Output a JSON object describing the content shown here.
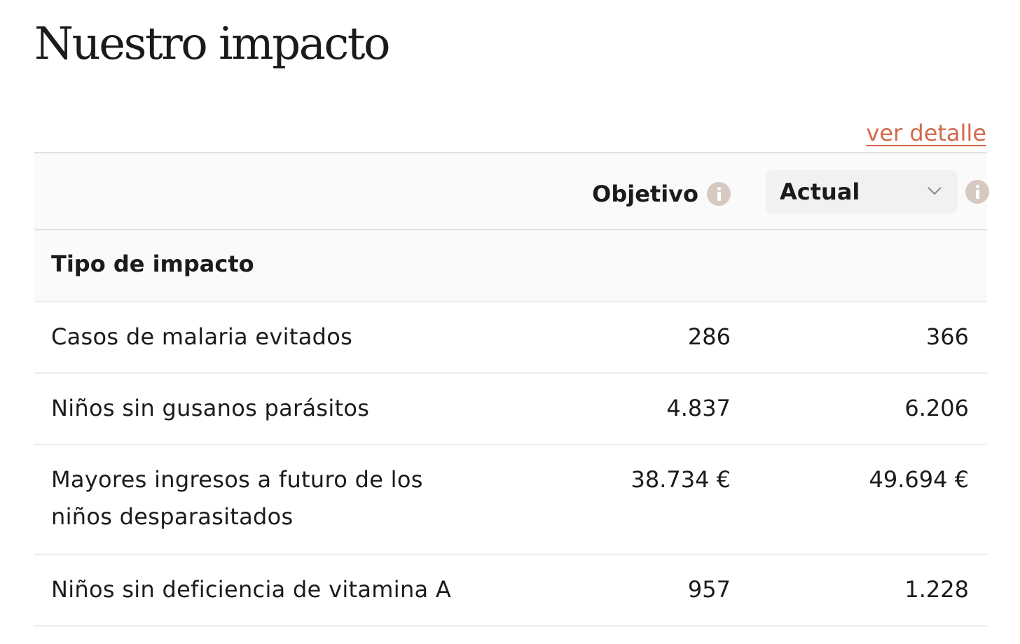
{
  "page": {
    "title": "Nuestro impacto",
    "detail_link": "ver detalle"
  },
  "table": {
    "columns": {
      "target_label": "Objetivo",
      "actual_select": {
        "selected": "Actual"
      }
    },
    "section_label": "Tipo de impacto",
    "rows": [
      {
        "label": "Casos de malaria evitados",
        "target": "286",
        "actual": "366"
      },
      {
        "label": "Niños sin gusanos parásitos",
        "target": "4.837",
        "actual": "6.206"
      },
      {
        "label": "Mayores ingresos a futuro de los niños desparasitados",
        "target": "38.734 €",
        "actual": "49.694 €"
      },
      {
        "label": "Niños sin deficiencia de vitamina A",
        "target": "957",
        "actual": "1.228"
      }
    ]
  },
  "icons": {
    "info": "info-icon",
    "select_arrow": "chevron-down-icon"
  },
  "colors": {
    "link": "#d2694a",
    "info_icon": "#d6c9c2",
    "header_bg": "#fafafa",
    "select_bg": "#f1f1f0"
  }
}
